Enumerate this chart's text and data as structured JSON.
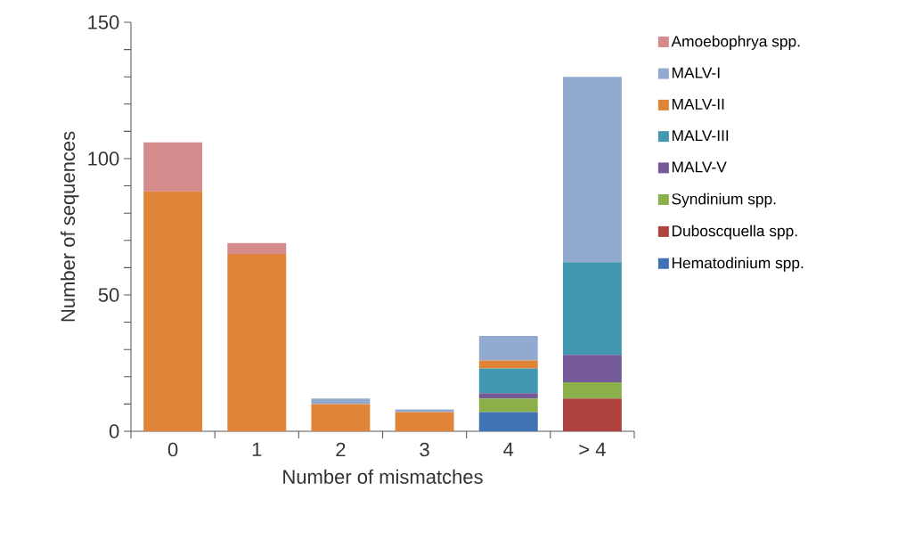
{
  "chart_data": {
    "type": "bar",
    "stacked": true,
    "xlabel": "Number of mismatches",
    "ylabel": "Number of sequences",
    "categories": [
      "0",
      "1",
      "2",
      "3",
      "4",
      "> 4"
    ],
    "series": [
      {
        "name": "Hematodinium spp.",
        "color": "#3f73b3",
        "values": [
          0,
          0,
          0,
          0,
          7,
          0
        ]
      },
      {
        "name": "Duboscquella spp.",
        "color": "#b04340",
        "values": [
          0,
          0,
          0,
          0,
          0,
          12
        ]
      },
      {
        "name": "Syndinium spp.",
        "color": "#8bb04a",
        "values": [
          0,
          0,
          0,
          0,
          5,
          6
        ]
      },
      {
        "name": "MALV-V",
        "color": "#745a96",
        "values": [
          0,
          0,
          0,
          0,
          2,
          10
        ]
      },
      {
        "name": "MALV-III",
        "color": "#4298b0",
        "values": [
          0,
          0,
          0,
          0,
          9,
          34
        ]
      },
      {
        "name": "MALV-II",
        "color": "#e0843a",
        "values": [
          88,
          65,
          10,
          7,
          3,
          0
        ]
      },
      {
        "name": "MALV-I",
        "color": "#92a9d0",
        "values": [
          0,
          0,
          2,
          1,
          9,
          68
        ]
      },
      {
        "name": "Amoebophrya spp.",
        "color": "#d58a8c",
        "values": [
          18,
          4,
          0,
          0,
          0,
          0
        ]
      }
    ],
    "ylim": [
      0,
      150
    ],
    "yticks": [
      0,
      {
        "value": 10,
        "label": null
      },
      {
        "value": 20,
        "label": null
      },
      {
        "value": 30,
        "label": null
      },
      {
        "value": 40,
        "label": null
      },
      50,
      {
        "value": 60,
        "label": null
      },
      {
        "value": 70,
        "label": null
      },
      {
        "value": 80,
        "label": null
      },
      {
        "value": 90,
        "label": null
      },
      100,
      {
        "value": 110,
        "label": null
      },
      {
        "value": 120,
        "label": null
      },
      {
        "value": 130,
        "label": null
      },
      {
        "value": 140,
        "label": null
      },
      150
    ],
    "legend": "right",
    "grid": false
  }
}
